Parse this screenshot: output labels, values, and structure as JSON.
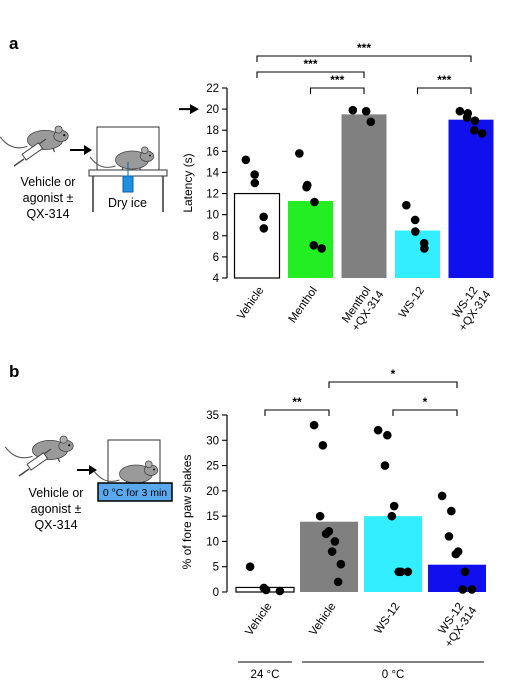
{
  "panels": {
    "a": {
      "letter": "a",
      "schematic": {
        "label_lines": [
          "Vehicle or",
          "agonist ±",
          "QX-314"
        ],
        "box_label": "Dry ice"
      }
    },
    "b": {
      "letter": "b",
      "schematic": {
        "label_lines": [
          "Vehicle or",
          "agonist ±",
          "QX-314"
        ],
        "box_label": "0 °C for 3 min"
      }
    }
  },
  "chart_data": [
    {
      "type": "bar",
      "panel": "a",
      "ylabel": "Latency (s)",
      "ylim": [
        4,
        22
      ],
      "yticks": [
        4,
        6,
        8,
        10,
        12,
        14,
        16,
        18,
        20,
        22
      ],
      "cutoff_arrow_y": 20,
      "categories": [
        {
          "lines": [
            "Vehicle"
          ]
        },
        {
          "lines": [
            "Menthol"
          ]
        },
        {
          "lines": [
            "Menthol",
            "+QX-314"
          ]
        },
        {
          "lines": [
            "WS-12"
          ]
        },
        {
          "lines": [
            "WS-12",
            "+QX-314"
          ]
        }
      ],
      "values": [
        12.0,
        11.3,
        19.5,
        8.5,
        19.0
      ],
      "colors": [
        "#ffffff",
        "#22ee22",
        "#808080",
        "#33eeff",
        "#1010ee"
      ],
      "points": [
        [
          15.2,
          13.8,
          13.0,
          9.8,
          8.7
        ],
        [
          15.8,
          12.8,
          12.6,
          11.2,
          7.1,
          6.8
        ],
        [
          19.9,
          19.8,
          18.8
        ],
        [
          10.9,
          9.5,
          8.4,
          7.3,
          6.8
        ],
        [
          19.8,
          19.6,
          19.2,
          18.9,
          18.0,
          17.7
        ]
      ],
      "significance": [
        {
          "from": 0,
          "to": 4,
          "label": "***",
          "level": 3
        },
        {
          "from": 0,
          "to": 2,
          "label": "***",
          "level": 2
        },
        {
          "from": 1,
          "to": 2,
          "label": "***",
          "level": 1
        },
        {
          "from": 3,
          "to": 4,
          "label": "***",
          "level": 1
        }
      ]
    },
    {
      "type": "bar",
      "panel": "b",
      "ylabel": "% of fore paw shakes",
      "ylim": [
        0,
        35
      ],
      "yticks": [
        0,
        5,
        10,
        15,
        20,
        25,
        30,
        35
      ],
      "categories": [
        {
          "lines": [
            "Vehicle"
          ]
        },
        {
          "lines": [
            "Vehicle"
          ]
        },
        {
          "lines": [
            "WS-12"
          ]
        },
        {
          "lines": [
            "WS-12",
            "+QX-314"
          ]
        }
      ],
      "values": [
        0.9,
        13.9,
        15.0,
        5.4
      ],
      "colors": [
        "#ffffff",
        "#808080",
        "#33eeff",
        "#1010ee"
      ],
      "points": [
        [
          5.0,
          0.8,
          0.4,
          0.2
        ],
        [
          33.0,
          29.0,
          15.0,
          12.0,
          11.5,
          10.0,
          8.0,
          5.5,
          2.0
        ],
        [
          32.0,
          31.0,
          25.0,
          17.0,
          15.0,
          4.0,
          4.0,
          4.0
        ],
        [
          19.0,
          16.0,
          11.0,
          8.0,
          7.5,
          4.0,
          0.5,
          0.5
        ]
      ],
      "significance": [
        {
          "from": 0,
          "to": 1,
          "label": "**",
          "level": 1
        },
        {
          "from": 1,
          "to": 3,
          "label": "*",
          "level": 2
        },
        {
          "from": 2,
          "to": 3,
          "label": "*",
          "level": 1
        }
      ],
      "groups": [
        {
          "label": "24 °C",
          "from": 0,
          "to": 0
        },
        {
          "label": "0 °C",
          "from": 1,
          "to": 3
        }
      ]
    }
  ]
}
